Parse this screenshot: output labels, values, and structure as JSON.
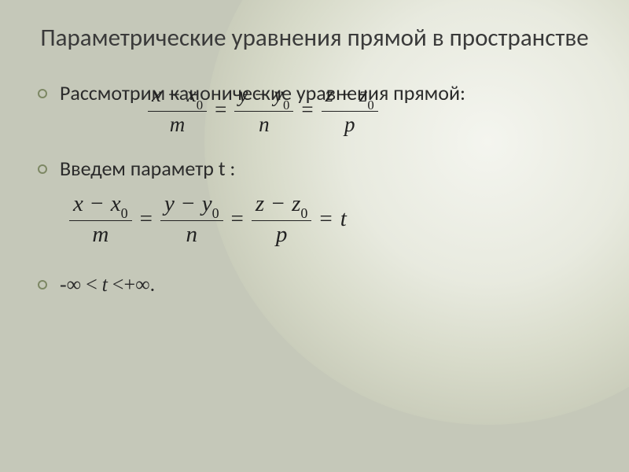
{
  "slide": {
    "background_color": "#c5c8b9",
    "gradient": {
      "shape": "circle",
      "center": "top-right",
      "stops": [
        "#f4f5ef",
        "#e8eadf",
        "#d8dbca",
        "#c9ccba",
        "#c5c8b9"
      ]
    },
    "title": "Параметрические уравнения прямой в пространстве",
    "title_color": "#3a3a3a",
    "title_fontsize": 31,
    "bullet_color": "#7d8864",
    "body_color": "#2b2b2b",
    "body_fontsize": 26,
    "bullets": [
      {
        "text": "Рассмотрим канонические уравнения прямой:"
      },
      {
        "text": "Введем параметр t :"
      },
      {
        "text_final": "-∞ < t <+∞."
      }
    ],
    "equation": {
      "fontsize": 27,
      "color": "#222222",
      "terms": {
        "x": "x",
        "y": "y",
        "z": "z",
        "x0": "x",
        "y0": "y",
        "z0": "z",
        "sub0": "0",
        "m": "m",
        "n": "n",
        "p": "p",
        "minus": "−",
        "eq": "=",
        "t": "t"
      }
    },
    "infinity": {
      "minus_inf": "-∞",
      "lt1": "<",
      "t": "t",
      "lt2": "<",
      "plus_inf": "+∞",
      "period": "."
    }
  }
}
